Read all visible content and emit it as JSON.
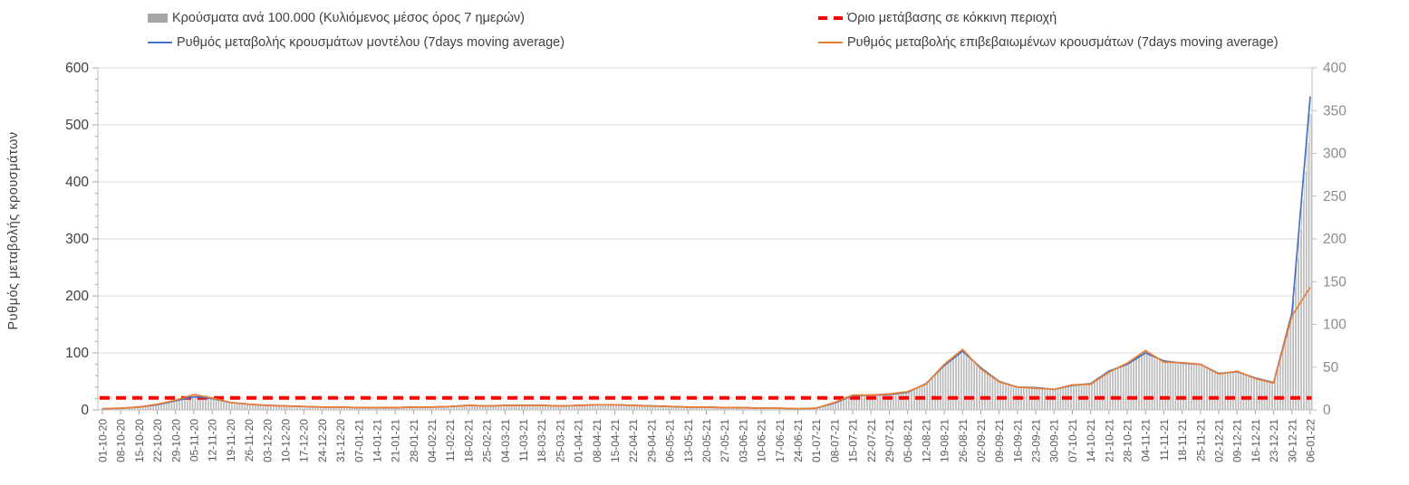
{
  "page": {
    "background": "#ffffff"
  },
  "legend": {
    "position": "top",
    "items": [
      {
        "label": "Κρούσματα ανά 100.000 (Κυλιόμενος μέσος όρος 7 ημερών)",
        "marker": "bar-swatch",
        "color": "#a6a6a6"
      },
      {
        "label": "Όριο μετάβασης σε κόκκινη περιοχή",
        "marker": "dashed-line",
        "color": "#ff0000"
      },
      {
        "label": "Ρυθμός μεταβολής κρουσμάτων μοντέλου (7days moving average)",
        "marker": "line",
        "color": "#4472c4"
      },
      {
        "label": "Ρυθμός μεταβολής επιβεβαιωμένων κρουσμάτων (7days moving average)",
        "marker": "line",
        "color": "#ed7d31"
      }
    ]
  },
  "chart_data": {
    "type": "bar",
    "grid": "horizontal",
    "x_sampling": "weekly",
    "x": [
      "01-10-20",
      "08-10-20",
      "15-10-20",
      "22-10-20",
      "29-10-20",
      "05-11-20",
      "12-11-20",
      "19-11-20",
      "26-11-20",
      "03-12-20",
      "10-12-20",
      "17-12-20",
      "24-12-20",
      "31-12-20",
      "07-01-21",
      "14-01-21",
      "21-01-21",
      "28-01-21",
      "04-02-21",
      "11-02-21",
      "18-02-21",
      "25-02-21",
      "04-03-21",
      "11-03-21",
      "18-03-21",
      "25-03-21",
      "01-04-21",
      "08-04-21",
      "15-04-21",
      "22-04-21",
      "29-04-21",
      "06-05-21",
      "13-05-21",
      "20-05-21",
      "27-05-21",
      "03-06-21",
      "10-06-21",
      "17-06-21",
      "24-06-21",
      "01-07-21",
      "08-07-21",
      "15-07-21",
      "22-07-21",
      "29-07-21",
      "05-08-21",
      "12-08-21",
      "19-08-21",
      "26-08-21",
      "02-09-21",
      "09-09-21",
      "16-09-21",
      "23-09-21",
      "30-09-21",
      "07-10-21",
      "14-10-21",
      "21-10-21",
      "28-10-21",
      "04-11-21",
      "11-11-21",
      "18-11-21",
      "25-11-21",
      "02-12-21",
      "09-12-21",
      "16-12-21",
      "23-12-21",
      "30-12-21",
      "06-01-22"
    ],
    "series": [
      {
        "name": "Κρούσματα ανά 100.000 (Κυλιόμενος μέσος όρος 7 ημερών)",
        "type": "bar",
        "axis": "right",
        "color": "#9e9e9e",
        "fill": "#ffffff",
        "values": [
          1.5,
          2,
          3.5,
          6.5,
          11,
          16,
          14,
          9,
          7,
          5.5,
          5,
          4,
          3.5,
          3.5,
          3,
          3,
          3,
          3.5,
          3.5,
          4,
          5.5,
          5,
          5.5,
          5.5,
          5.5,
          5,
          5.5,
          6,
          6,
          5.5,
          5,
          4,
          3.5,
          3.5,
          3,
          3,
          2,
          2,
          1.5,
          2,
          8,
          17,
          17.5,
          18.5,
          21,
          30,
          52,
          69,
          48,
          33,
          27,
          26,
          24,
          29,
          30,
          44,
          54,
          68,
          57,
          55,
          53,
          43,
          45,
          37,
          32,
          110,
          345
        ]
      },
      {
        "name": "Ρυθμός μεταβολής κρουσμάτων μοντέλου (7days moving average)",
        "type": "line",
        "axis": "left",
        "color": "#4472c4",
        "values": [
          2,
          3,
          5,
          9,
          16,
          23,
          20,
          13,
          10,
          8,
          7,
          6,
          5,
          5,
          4,
          4,
          4,
          5,
          5,
          6,
          8,
          7,
          8,
          8,
          8,
          7,
          8,
          9,
          9,
          8,
          7,
          6,
          5,
          5,
          4,
          4,
          3,
          3,
          2,
          3,
          12,
          25,
          26,
          27,
          31,
          46,
          78,
          103,
          74,
          50,
          40,
          39,
          36,
          43,
          46,
          68,
          80,
          100,
          86,
          82,
          80,
          64,
          67,
          56,
          48,
          170,
          550
        ]
      },
      {
        "name": "Ρυθμός μεταβολής επιβεβαιωμένων κρουσμάτων (7days moving average)",
        "type": "line",
        "axis": "left",
        "color": "#ed7d31",
        "values": [
          2,
          3,
          5,
          10,
          17,
          27,
          21,
          13,
          10,
          8,
          7,
          6,
          5,
          5,
          4,
          4,
          4,
          5,
          5,
          6,
          8,
          7,
          8,
          8,
          8,
          7,
          8,
          9,
          9,
          8,
          7,
          6,
          5,
          5,
          4,
          4,
          3,
          3,
          2,
          3,
          13,
          26,
          26,
          28,
          32,
          45,
          80,
          106,
          72,
          49,
          40,
          38,
          36,
          44,
          45,
          66,
          82,
          104,
          84,
          83,
          80,
          63,
          68,
          55,
          47,
          165,
          215
        ]
      }
    ],
    "threshold": {
      "name": "Όριο μετάβασης σε κόκκινη περιοχή",
      "value": 14,
      "axis": "right",
      "color": "#ff0000"
    },
    "left_axis": {
      "title": "Ρυθμός μεταβολής κρουσμάτων",
      "min": 0,
      "max": 600,
      "step": 100,
      "minor_step": 20,
      "ticks": [
        "0",
        "100",
        "200",
        "300",
        "400",
        "500",
        "600"
      ]
    },
    "right_axis": {
      "title": "",
      "min": 0,
      "max": 400,
      "step": 50,
      "ticks": [
        "0",
        "50",
        "100",
        "150",
        "200",
        "250",
        "300",
        "350",
        "400"
      ]
    }
  }
}
